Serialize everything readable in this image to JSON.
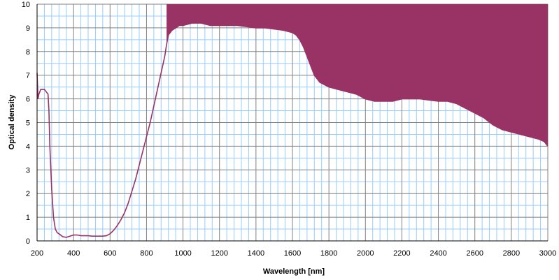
{
  "chart_data": {
    "type": "area",
    "title": "",
    "xlabel": "Wavelength [nm]",
    "ylabel": "Optical density",
    "xlim": [
      200,
      3000
    ],
    "ylim": [
      0,
      10
    ],
    "x_ticks": [
      200,
      400,
      600,
      800,
      1000,
      1200,
      1400,
      1600,
      1800,
      2000,
      2200,
      2400,
      2600,
      2800,
      3000
    ],
    "y_ticks": [
      0,
      1,
      2,
      3,
      4,
      5,
      6,
      7,
      8,
      9,
      10
    ],
    "grid": true,
    "legend": "none",
    "colors": {
      "series": "#993366",
      "grid_major": "#808080",
      "grid_minor": "#99ccff"
    },
    "series": [
      {
        "x": [
          200,
          205,
          210,
          220,
          230,
          240,
          250,
          260,
          265,
          270,
          280,
          290,
          300,
          310,
          320,
          340,
          360,
          380,
          400,
          420,
          440,
          460,
          480,
          500,
          520,
          540,
          560,
          580,
          600,
          620,
          640,
          660,
          680,
          700,
          720,
          740,
          760,
          780,
          800,
          820,
          840,
          860,
          880,
          900,
          910,
          920,
          940,
          960,
          980,
          1000,
          1050,
          1100,
          1150,
          1200,
          1250,
          1300,
          1350,
          1400,
          1450,
          1500,
          1550,
          1600,
          1620,
          1640,
          1660,
          1680,
          1700,
          1720,
          1750,
          1800,
          1850,
          1900,
          1950,
          2000,
          2050,
          2100,
          2150,
          2200,
          2250,
          2300,
          2350,
          2400,
          2450,
          2500,
          2550,
          2600,
          2650,
          2700,
          2750,
          2800,
          2850,
          2900,
          2950,
          2980,
          3000
        ],
        "y": [
          7.1,
          6.0,
          6.2,
          6.4,
          6.4,
          6.4,
          6.3,
          6.2,
          5.5,
          4.0,
          2.2,
          1.0,
          0.5,
          0.35,
          0.3,
          0.18,
          0.15,
          0.2,
          0.25,
          0.25,
          0.22,
          0.22,
          0.22,
          0.2,
          0.2,
          0.2,
          0.2,
          0.22,
          0.3,
          0.45,
          0.65,
          0.9,
          1.2,
          1.6,
          2.1,
          2.6,
          3.2,
          3.8,
          4.4,
          5.0,
          5.7,
          6.4,
          7.1,
          7.8,
          8.3,
          8.7,
          8.9,
          9.0,
          9.1,
          9.1,
          9.2,
          9.2,
          9.1,
          9.1,
          9.1,
          9.1,
          9.05,
          9.0,
          9.0,
          8.95,
          8.9,
          8.8,
          8.7,
          8.5,
          8.2,
          7.8,
          7.4,
          7.0,
          6.7,
          6.5,
          6.4,
          6.3,
          6.2,
          6.0,
          5.9,
          5.9,
          5.9,
          6.0,
          6.0,
          6.0,
          5.95,
          5.9,
          5.9,
          5.8,
          5.6,
          5.4,
          5.2,
          4.9,
          4.7,
          4.6,
          4.5,
          4.4,
          4.3,
          4.2,
          4.0
        ]
      }
    ]
  }
}
